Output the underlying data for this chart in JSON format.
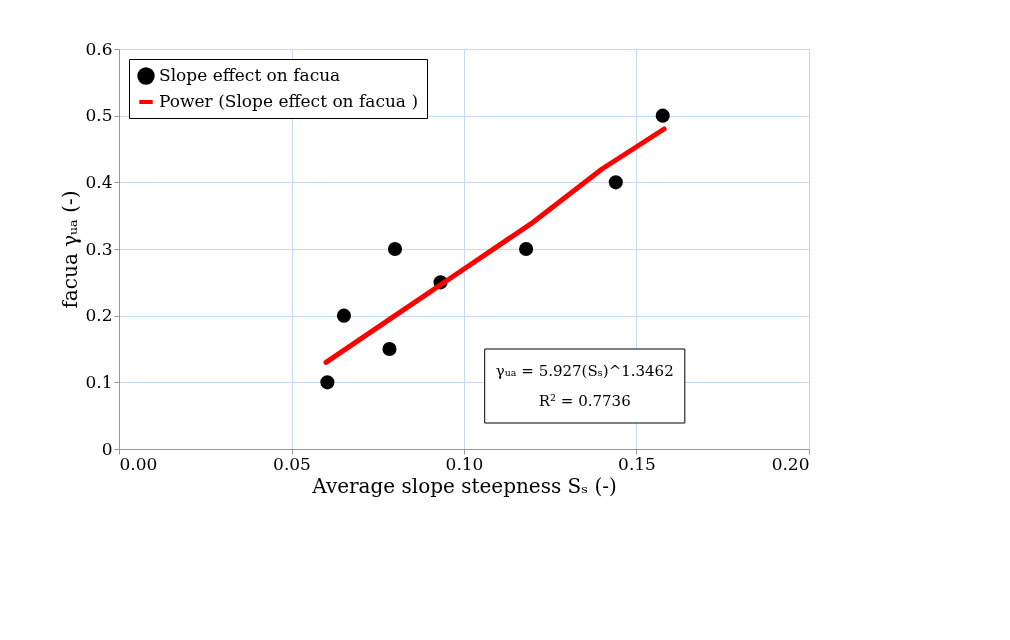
{
  "chart_data": {
    "type": "scatter",
    "xlabel": "Average slope steepness Sₛ (-)",
    "ylabel": "facua γᵤₐ (-)",
    "x": [
      0.0604,
      0.0652,
      0.08,
      0.0784,
      0.0932,
      0.118,
      0.144,
      0.1576
    ],
    "series": [
      {
        "name": "Slope effect on facua",
        "color": "#000000",
        "marker": "circle",
        "values": [
          0.1,
          0.2,
          0.3,
          0.15,
          0.25,
          0.3,
          0.4,
          0.5
        ]
      },
      {
        "name": "Power (Slope effect on facua )",
        "color": "#ff0000",
        "type": "line",
        "marker": "none",
        "line_style": "solid",
        "x": [
          0.06,
          0.08,
          0.1,
          0.12,
          0.14,
          0.158
        ],
        "values": [
          0.13,
          0.2,
          0.27,
          0.34,
          0.42,
          0.48
        ]
      }
    ],
    "xlim": [
      0,
      0.2
    ],
    "xticks": [
      {
        "value": 0,
        "label": "0.00"
      },
      {
        "value": 0.05,
        "label": "0.05"
      },
      {
        "value": 0.1,
        "label": "0.10"
      },
      {
        "value": 0.15,
        "label": "0.15"
      },
      {
        "value": 0.2,
        "label": "0.20"
      }
    ],
    "ylim": [
      0,
      0.6
    ],
    "yticks": [
      0,
      0.1,
      0.2,
      0.3,
      0.4,
      0.5,
      0.6
    ],
    "grid": true,
    "legend": "top left",
    "annotations": [
      "γᵤₐ = 5.927(Sₛ)^1.3462",
      "R² = 0.7736"
    ]
  }
}
